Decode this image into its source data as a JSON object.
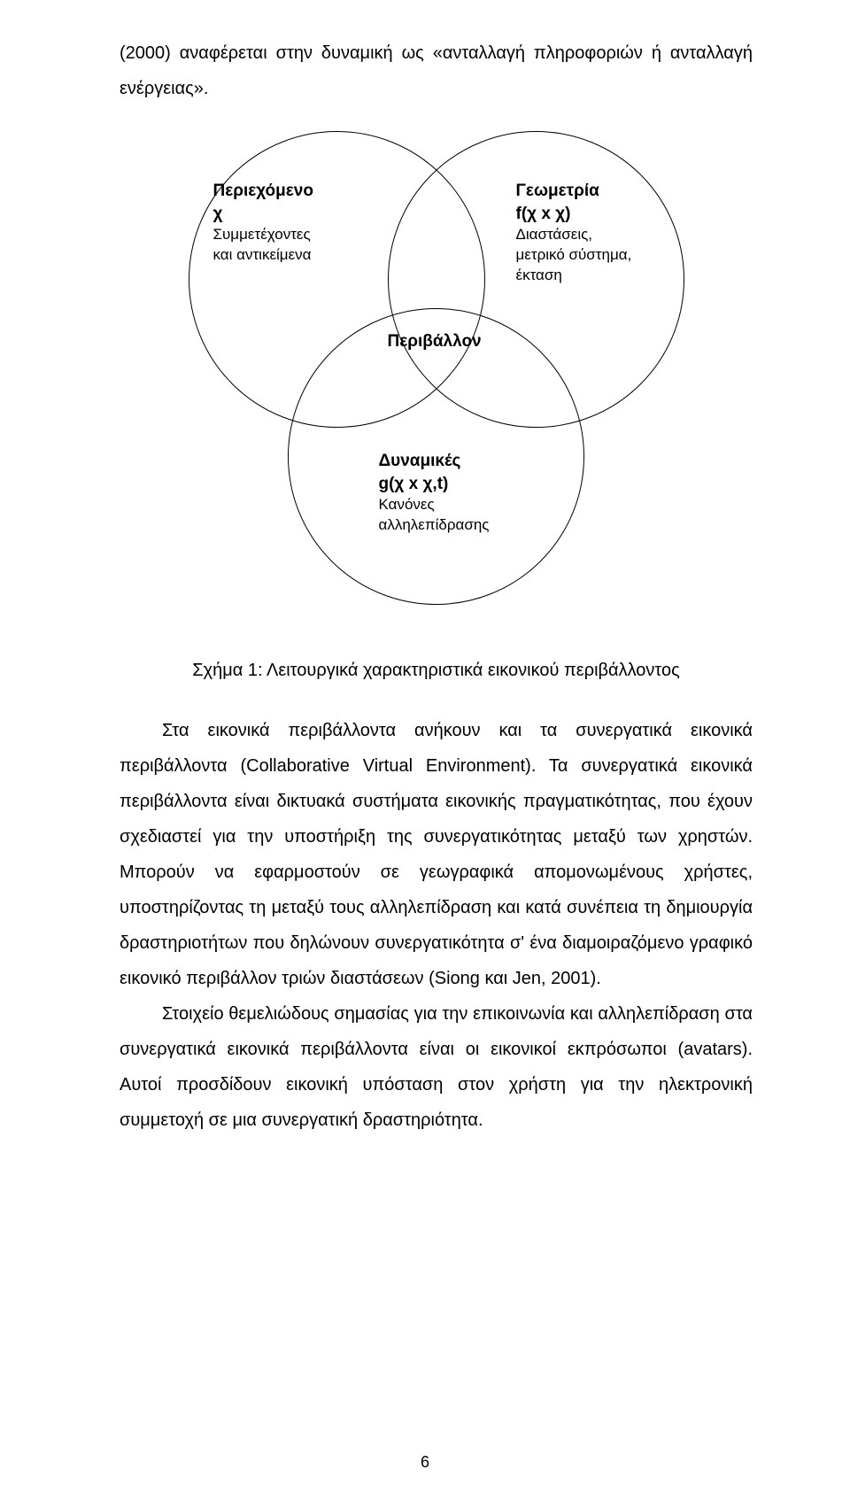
{
  "intro": "(2000) αναφέρεται στην δυναμική ως «ανταλλαγή πληροφοριών ή ανταλλαγή ενέργειας».",
  "diagram": {
    "circle_stroke": "#000000",
    "circle_fill": "transparent",
    "background": "#ffffff",
    "left": {
      "title": "Περιεχόμενο",
      "sym": "χ",
      "desc1": "Συμμετέχοντες",
      "desc2": "και αντικείμενα"
    },
    "right": {
      "title": "Γεωμετρία",
      "sym": "f(χ x χ)",
      "desc1": "Διαστάσεις,",
      "desc2": "μετρικό σύστημα,",
      "desc3": "έκταση"
    },
    "center": {
      "title": "Περιβάλλον"
    },
    "bottom": {
      "title": "Δυναμικές",
      "sym": "g(χ x χ,t)",
      "desc1": "Κανόνες",
      "desc2": "αλληλεπίδρασης"
    }
  },
  "caption": "Σχήμα 1: Λειτουργικά χαρακτηριστικά εικονικού περιβάλλοντος",
  "para1": "Στα εικονικά περιβάλλοντα ανήκουν και τα συνεργατικά εικονικά περιβάλλοντα (Collaborative Virtual Environment). Τα συνεργατικά εικονικά περιβάλλοντα είναι δικτυακά συστήματα εικονικής πραγματικότητας, που έχουν σχεδιαστεί για την υποστήριξη της συνεργατικότητας μεταξύ των χρηστών. Μπορούν να εφαρμοστούν σε γεωγραφικά απομονωμένους χρήστες, υποστηρίζοντας τη μεταξύ τους αλληλεπίδραση και κατά συνέπεια τη δημιουργία δραστηριοτήτων που δηλώνουν συνεργατικότητα σ' ένα διαμοιραζόμενο γραφικό εικονικό περιβάλλον τριών διαστάσεων (Siong και Jen, 2001).",
  "para2": "Στοιχείο θεμελιώδους σημασίας για την επικοινωνία και αλληλεπίδραση στα συνεργατικά εικονικά περιβάλλοντα είναι οι εικονικοί εκπρόσωποι (avatars). Αυτοί προσδίδουν εικονική υπόσταση στον χρήστη για την ηλεκτρονική συμμετοχή σε μια συνεργατική δραστηριότητα.",
  "pagenum": "6"
}
